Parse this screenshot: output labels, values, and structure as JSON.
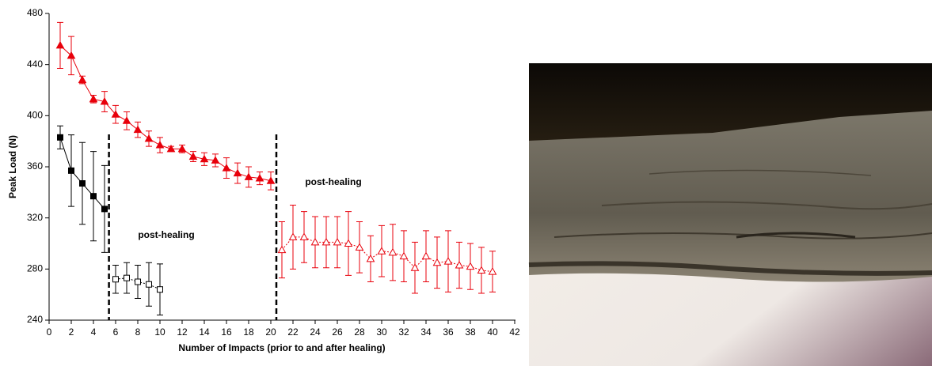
{
  "chart_data": {
    "type": "scatter",
    "xlabel": "Number of Impacts (prior to  and after healing)",
    "ylabel": "Peak Load (N)",
    "xlim": [
      0,
      42
    ],
    "xticks": [
      0,
      2,
      4,
      6,
      8,
      10,
      12,
      14,
      16,
      18,
      20,
      22,
      24,
      26,
      28,
      30,
      32,
      34,
      36,
      38,
      40,
      42
    ],
    "ylim": [
      240,
      480
    ],
    "yticks": [
      240,
      280,
      320,
      360,
      400,
      440,
      480
    ],
    "grid": false,
    "dividers": [
      5.4,
      20.5
    ],
    "annotations": [
      "post-healing",
      "post-healing"
    ],
    "series": [
      {
        "color": "#000000",
        "marker": "square",
        "filled": true,
        "dashed": false,
        "x": [
          1,
          2,
          3,
          4,
          5
        ],
        "values": [
          383,
          357,
          347,
          337,
          327
        ],
        "errors": [
          9,
          28,
          32,
          35,
          34
        ]
      },
      {
        "color": "#000000",
        "marker": "square",
        "filled": false,
        "dashed": true,
        "x": [
          6,
          7,
          8,
          9,
          10
        ],
        "values": [
          272,
          273,
          270,
          268,
          264
        ],
        "errors": [
          11,
          12,
          13,
          17,
          20
        ]
      },
      {
        "color": "#e8000b",
        "marker": "triangle",
        "filled": true,
        "dashed": false,
        "x": [
          1,
          2,
          3,
          4,
          5,
          6,
          7,
          8,
          9,
          10,
          11,
          12,
          13,
          14,
          15,
          16,
          17,
          18,
          19,
          20
        ],
        "values": [
          455,
          447,
          428,
          413,
          411,
          401,
          396,
          389,
          382,
          377,
          374,
          374,
          368,
          366,
          365,
          359,
          355,
          352,
          351,
          349
        ],
        "errors": [
          18,
          15,
          3,
          3,
          8,
          7,
          7,
          6,
          6,
          6,
          2,
          3,
          4,
          5,
          5,
          8,
          8,
          8,
          5,
          7
        ]
      },
      {
        "color": "#e8000b",
        "marker": "triangle",
        "filled": false,
        "dashed": true,
        "x": [
          21,
          22,
          23,
          24,
          25,
          26,
          27,
          28,
          29,
          30,
          31,
          32,
          33,
          34,
          35,
          36,
          37,
          38,
          39,
          40
        ],
        "values": [
          295,
          305,
          305,
          301,
          301,
          301,
          300,
          297,
          288,
          294,
          293,
          290,
          281,
          290,
          285,
          286,
          283,
          282,
          279,
          278
        ],
        "errors": [
          22,
          25,
          20,
          20,
          20,
          20,
          25,
          20,
          18,
          20,
          22,
          20,
          20,
          20,
          20,
          24,
          18,
          18,
          18,
          16
        ]
      }
    ]
  }
}
